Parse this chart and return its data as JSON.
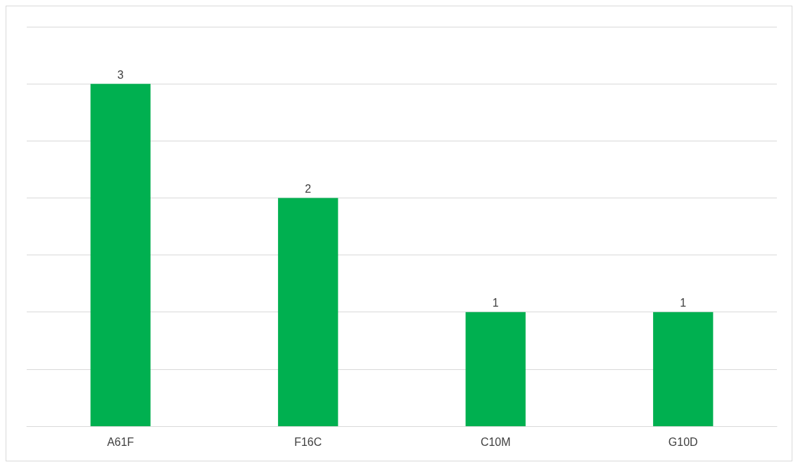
{
  "chart_data": {
    "type": "bar",
    "categories": [
      "A61F",
      "F16C",
      "C10M",
      "G10D"
    ],
    "values": [
      3,
      2,
      1,
      1
    ],
    "color": "#00b050",
    "data_labels": true,
    "grid": "y",
    "tick_labels": "x",
    "ylim": [
      0,
      3.5
    ],
    "yticks": [
      {
        "value": 0,
        "label": null
      },
      {
        "value": 0.5,
        "label": null
      },
      {
        "value": 1,
        "label": null
      },
      {
        "value": 1.5,
        "label": null
      },
      {
        "value": 2,
        "label": null
      },
      {
        "value": 2.5,
        "label": null
      },
      {
        "value": 3,
        "label": null
      },
      {
        "value": 3.5,
        "label": null
      }
    ]
  }
}
